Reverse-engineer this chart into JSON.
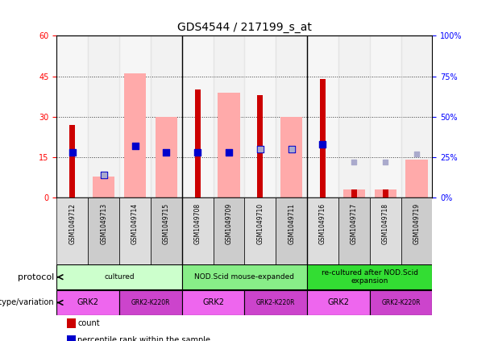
{
  "title": "GDS4544 / 217199_s_at",
  "samples": [
    "GSM1049712",
    "GSM1049713",
    "GSM1049714",
    "GSM1049715",
    "GSM1049708",
    "GSM1049709",
    "GSM1049710",
    "GSM1049711",
    "GSM1049716",
    "GSM1049717",
    "GSM1049718",
    "GSM1049719"
  ],
  "count_values": [
    27,
    0,
    0,
    0,
    40,
    0,
    38,
    0,
    44,
    3,
    3,
    0
  ],
  "percentile_values": [
    28,
    14,
    32,
    28,
    28,
    28,
    30,
    30,
    33,
    0,
    0,
    0
  ],
  "absent_value_bars": [
    0,
    8,
    46,
    30,
    0,
    39,
    0,
    30,
    0,
    3,
    3,
    14
  ],
  "absent_rank_dots": [
    0,
    14,
    0,
    0,
    0,
    0,
    30,
    30,
    0,
    22,
    22,
    27
  ],
  "ylim_left": [
    0,
    60
  ],
  "ylim_right": [
    0,
    100
  ],
  "yticks_left": [
    0,
    15,
    30,
    45,
    60
  ],
  "yticks_right": [
    0,
    25,
    50,
    75,
    100
  ],
  "ytick_labels_left": [
    "0",
    "15",
    "30",
    "45",
    "60"
  ],
  "ytick_labels_right": [
    "0%",
    "25%",
    "50%",
    "75%",
    "100%"
  ],
  "color_count": "#cc0000",
  "color_percentile": "#0000cc",
  "color_absent_value": "#ffaaaa",
  "color_absent_rank": "#aaaacc",
  "protocol_groups": [
    {
      "label": "cultured",
      "start": 0,
      "end": 4,
      "color": "#ccffcc"
    },
    {
      "label": "NOD.Scid mouse-expanded",
      "start": 4,
      "end": 8,
      "color": "#88ee88"
    },
    {
      "label": "re-cultured after NOD.Scid\nexpansion",
      "start": 8,
      "end": 12,
      "color": "#33dd33"
    }
  ],
  "genotype_groups": [
    {
      "label": "GRK2",
      "start": 0,
      "end": 2,
      "color": "#ee66ee"
    },
    {
      "label": "GRK2-K220R",
      "start": 2,
      "end": 4,
      "color": "#cc44cc"
    },
    {
      "label": "GRK2",
      "start": 4,
      "end": 6,
      "color": "#ee66ee"
    },
    {
      "label": "GRK2-K220R",
      "start": 6,
      "end": 8,
      "color": "#cc44cc"
    },
    {
      "label": "GRK2",
      "start": 8,
      "end": 10,
      "color": "#ee66ee"
    },
    {
      "label": "GRK2-K220R",
      "start": 10,
      "end": 12,
      "color": "#cc44cc"
    }
  ],
  "dot_size": 30,
  "absent_dot_size": 25
}
